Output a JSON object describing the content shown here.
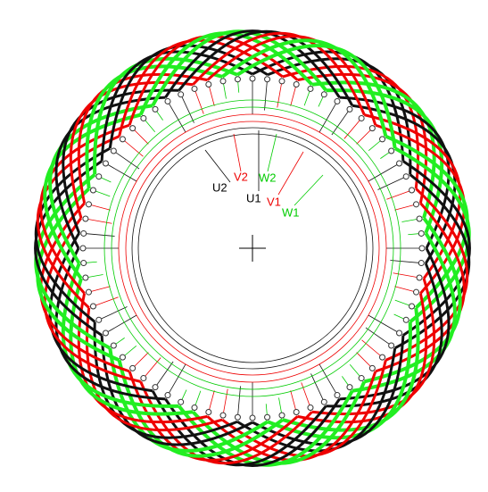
{
  "labels": [
    "U2",
    "V2",
    "W2",
    "U1",
    "V1",
    "W1"
  ]
}
